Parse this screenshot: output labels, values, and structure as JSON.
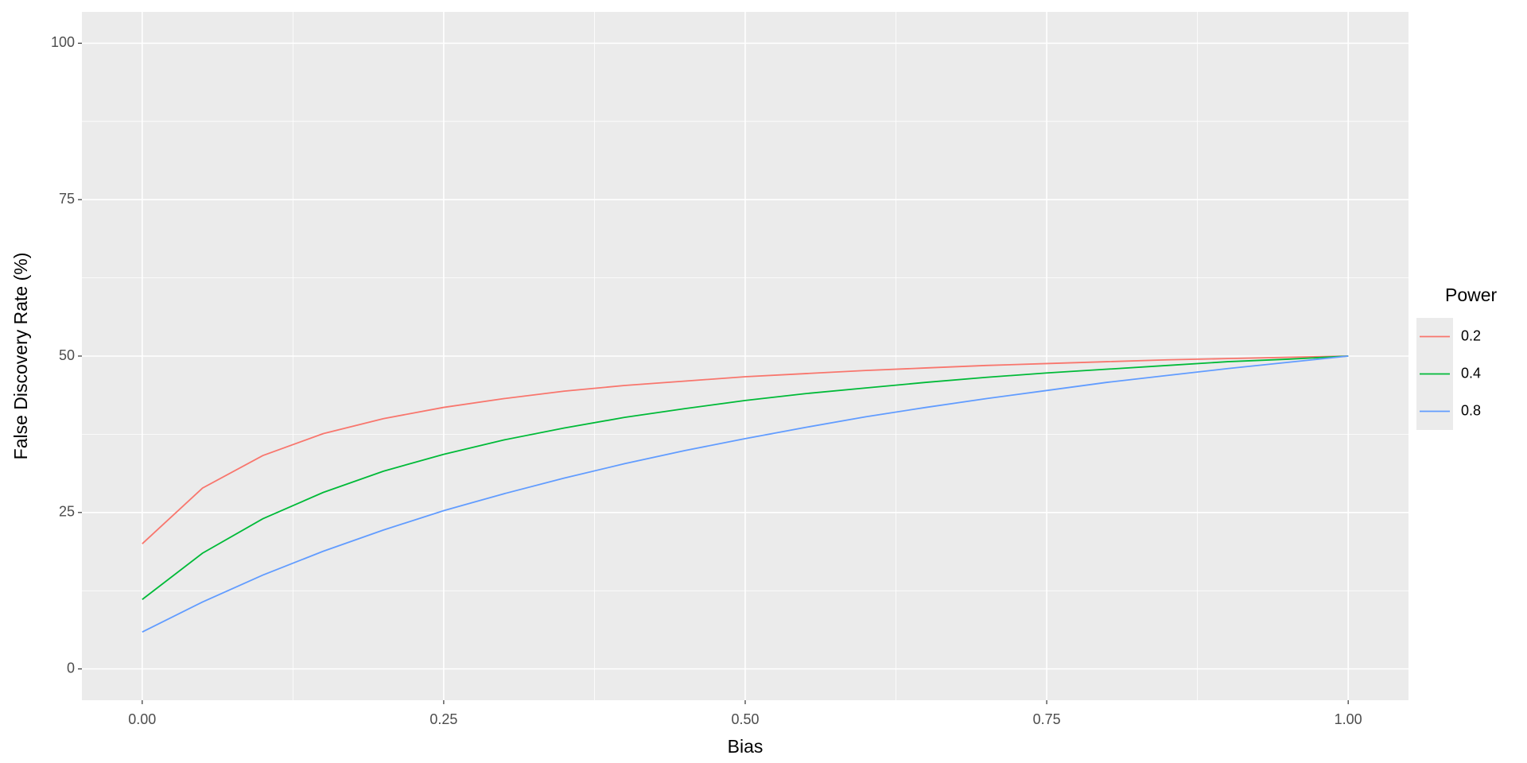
{
  "chart_data": {
    "type": "line",
    "x_label": "Bias",
    "y_label": "False Discovery Rate (%)",
    "legend_title": "Power",
    "legend_position": "right",
    "grid": true,
    "x": [
      0,
      0.05,
      0.1,
      0.15,
      0.2,
      0.25,
      0.3,
      0.35,
      0.4,
      0.45,
      0.5,
      0.55,
      0.6,
      0.65,
      0.7,
      0.75,
      0.8,
      0.85,
      0.9,
      0.95,
      1
    ],
    "series": [
      {
        "name": "0.2",
        "color": "#F8766D",
        "values": [
          20.0,
          28.9,
          34.1,
          37.6,
          40.0,
          41.8,
          43.2,
          44.4,
          45.3,
          46.0,
          46.7,
          47.2,
          47.7,
          48.1,
          48.5,
          48.8,
          49.1,
          49.4,
          49.6,
          49.8,
          50.0
        ]
      },
      {
        "name": "0.4",
        "color": "#00BA38",
        "values": [
          11.1,
          18.5,
          24.0,
          28.2,
          31.6,
          34.3,
          36.6,
          38.5,
          40.2,
          41.6,
          42.9,
          44.0,
          44.9,
          45.8,
          46.6,
          47.3,
          47.9,
          48.5,
          49.1,
          49.5,
          50.0
        ]
      },
      {
        "name": "0.8",
        "color": "#619CFF",
        "values": [
          5.9,
          10.7,
          15.0,
          18.8,
          22.2,
          25.3,
          28.0,
          30.5,
          32.8,
          34.9,
          36.8,
          38.6,
          40.3,
          41.8,
          43.2,
          44.5,
          45.8,
          46.9,
          48.0,
          49.0,
          50.0
        ]
      }
    ],
    "xlim": [
      -0.05,
      1.05
    ],
    "xticks": [
      {
        "value": 0,
        "label": "0.00"
      },
      {
        "value": 0.25,
        "label": "0.25"
      },
      {
        "value": 0.5,
        "label": "0.50"
      },
      {
        "value": 0.75,
        "label": "0.75"
      },
      {
        "value": 1,
        "label": "1.00"
      }
    ],
    "ylim": [
      -5,
      105
    ],
    "yticks": [
      0,
      25,
      50,
      75,
      100
    ]
  }
}
